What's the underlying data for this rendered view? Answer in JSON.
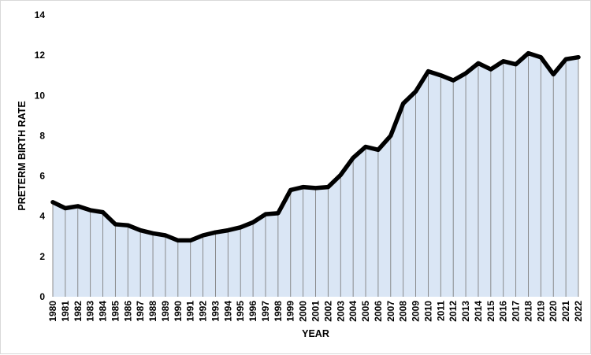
{
  "chart_data": {
    "type": "area",
    "title": "",
    "xlabel": "YEAR",
    "ylabel": "PRETERM BIRTH RATE",
    "ylim": [
      0,
      14
    ],
    "yticks": [
      0,
      2,
      4,
      6,
      8,
      10,
      12,
      14
    ],
    "grid": false,
    "legend": "none",
    "colors": {
      "fill": "#dae6f5",
      "line": "#000000",
      "drop_lines": "#808080"
    },
    "categories": [
      "1980",
      "1981",
      "1982",
      "1983",
      "1984",
      "1985",
      "1986",
      "1987",
      "1988",
      "1989",
      "1990",
      "1991",
      "1992",
      "1993",
      "1994",
      "1995",
      "1996",
      "1997",
      "1998",
      "1999",
      "2000",
      "2001",
      "2002",
      "2003",
      "2004",
      "2005",
      "2006",
      "2007",
      "2008",
      "2009",
      "2010",
      "2011",
      "2012",
      "2013",
      "2014",
      "2015",
      "2016",
      "2017",
      "2018",
      "2019",
      "2020",
      "2021",
      "2022"
    ],
    "series": [
      {
        "values": [
          4.7,
          4.4,
          4.5,
          4.3,
          4.2,
          3.6,
          3.55,
          3.3,
          3.15,
          3.05,
          2.8,
          2.8,
          3.05,
          3.2,
          3.3,
          3.45,
          3.7,
          4.1,
          4.15,
          5.3,
          5.45,
          5.4,
          5.45,
          6.05,
          6.9,
          7.45,
          7.3,
          8.0,
          9.6,
          10.2,
          11.2,
          11.0,
          10.75,
          11.1,
          11.6,
          11.3,
          11.7,
          11.55,
          12.1,
          11.9,
          11.05,
          11.8,
          11.9
        ]
      }
    ]
  }
}
